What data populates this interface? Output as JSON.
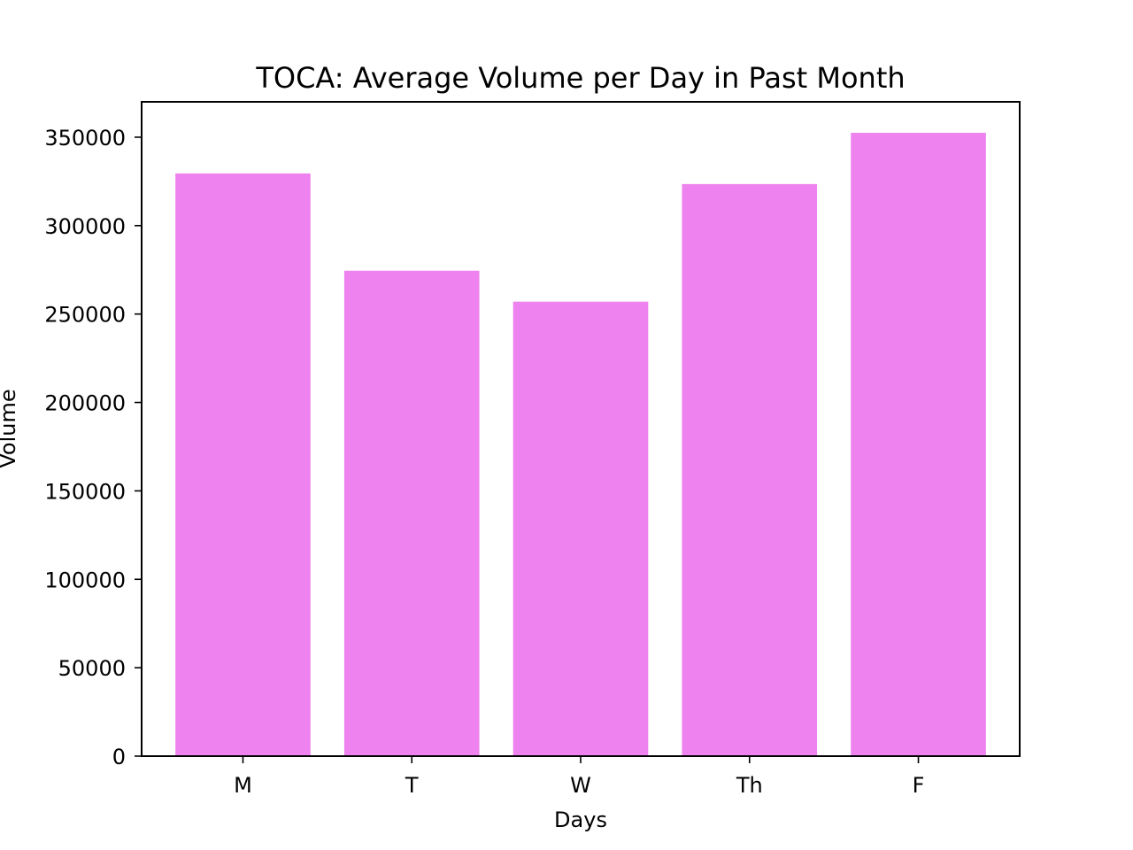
{
  "chart_data": {
    "type": "bar",
    "title": "TOCA: Average Volume per Day in Past Month",
    "xlabel": "Days",
    "ylabel": "Volume",
    "categories": [
      "M",
      "T",
      "W",
      "Th",
      "F"
    ],
    "values": [
      329500,
      274500,
      257000,
      323500,
      352500
    ],
    "ylim": [
      0,
      370000
    ],
    "yticks": [
      0,
      50000,
      100000,
      150000,
      200000,
      250000,
      300000,
      350000
    ],
    "ytick_labels": [
      "0",
      "50000",
      "100000",
      "150000",
      "200000",
      "250000",
      "300000",
      "350000"
    ],
    "bar_color": "#ee82ee",
    "grid": false,
    "legend": "none"
  }
}
